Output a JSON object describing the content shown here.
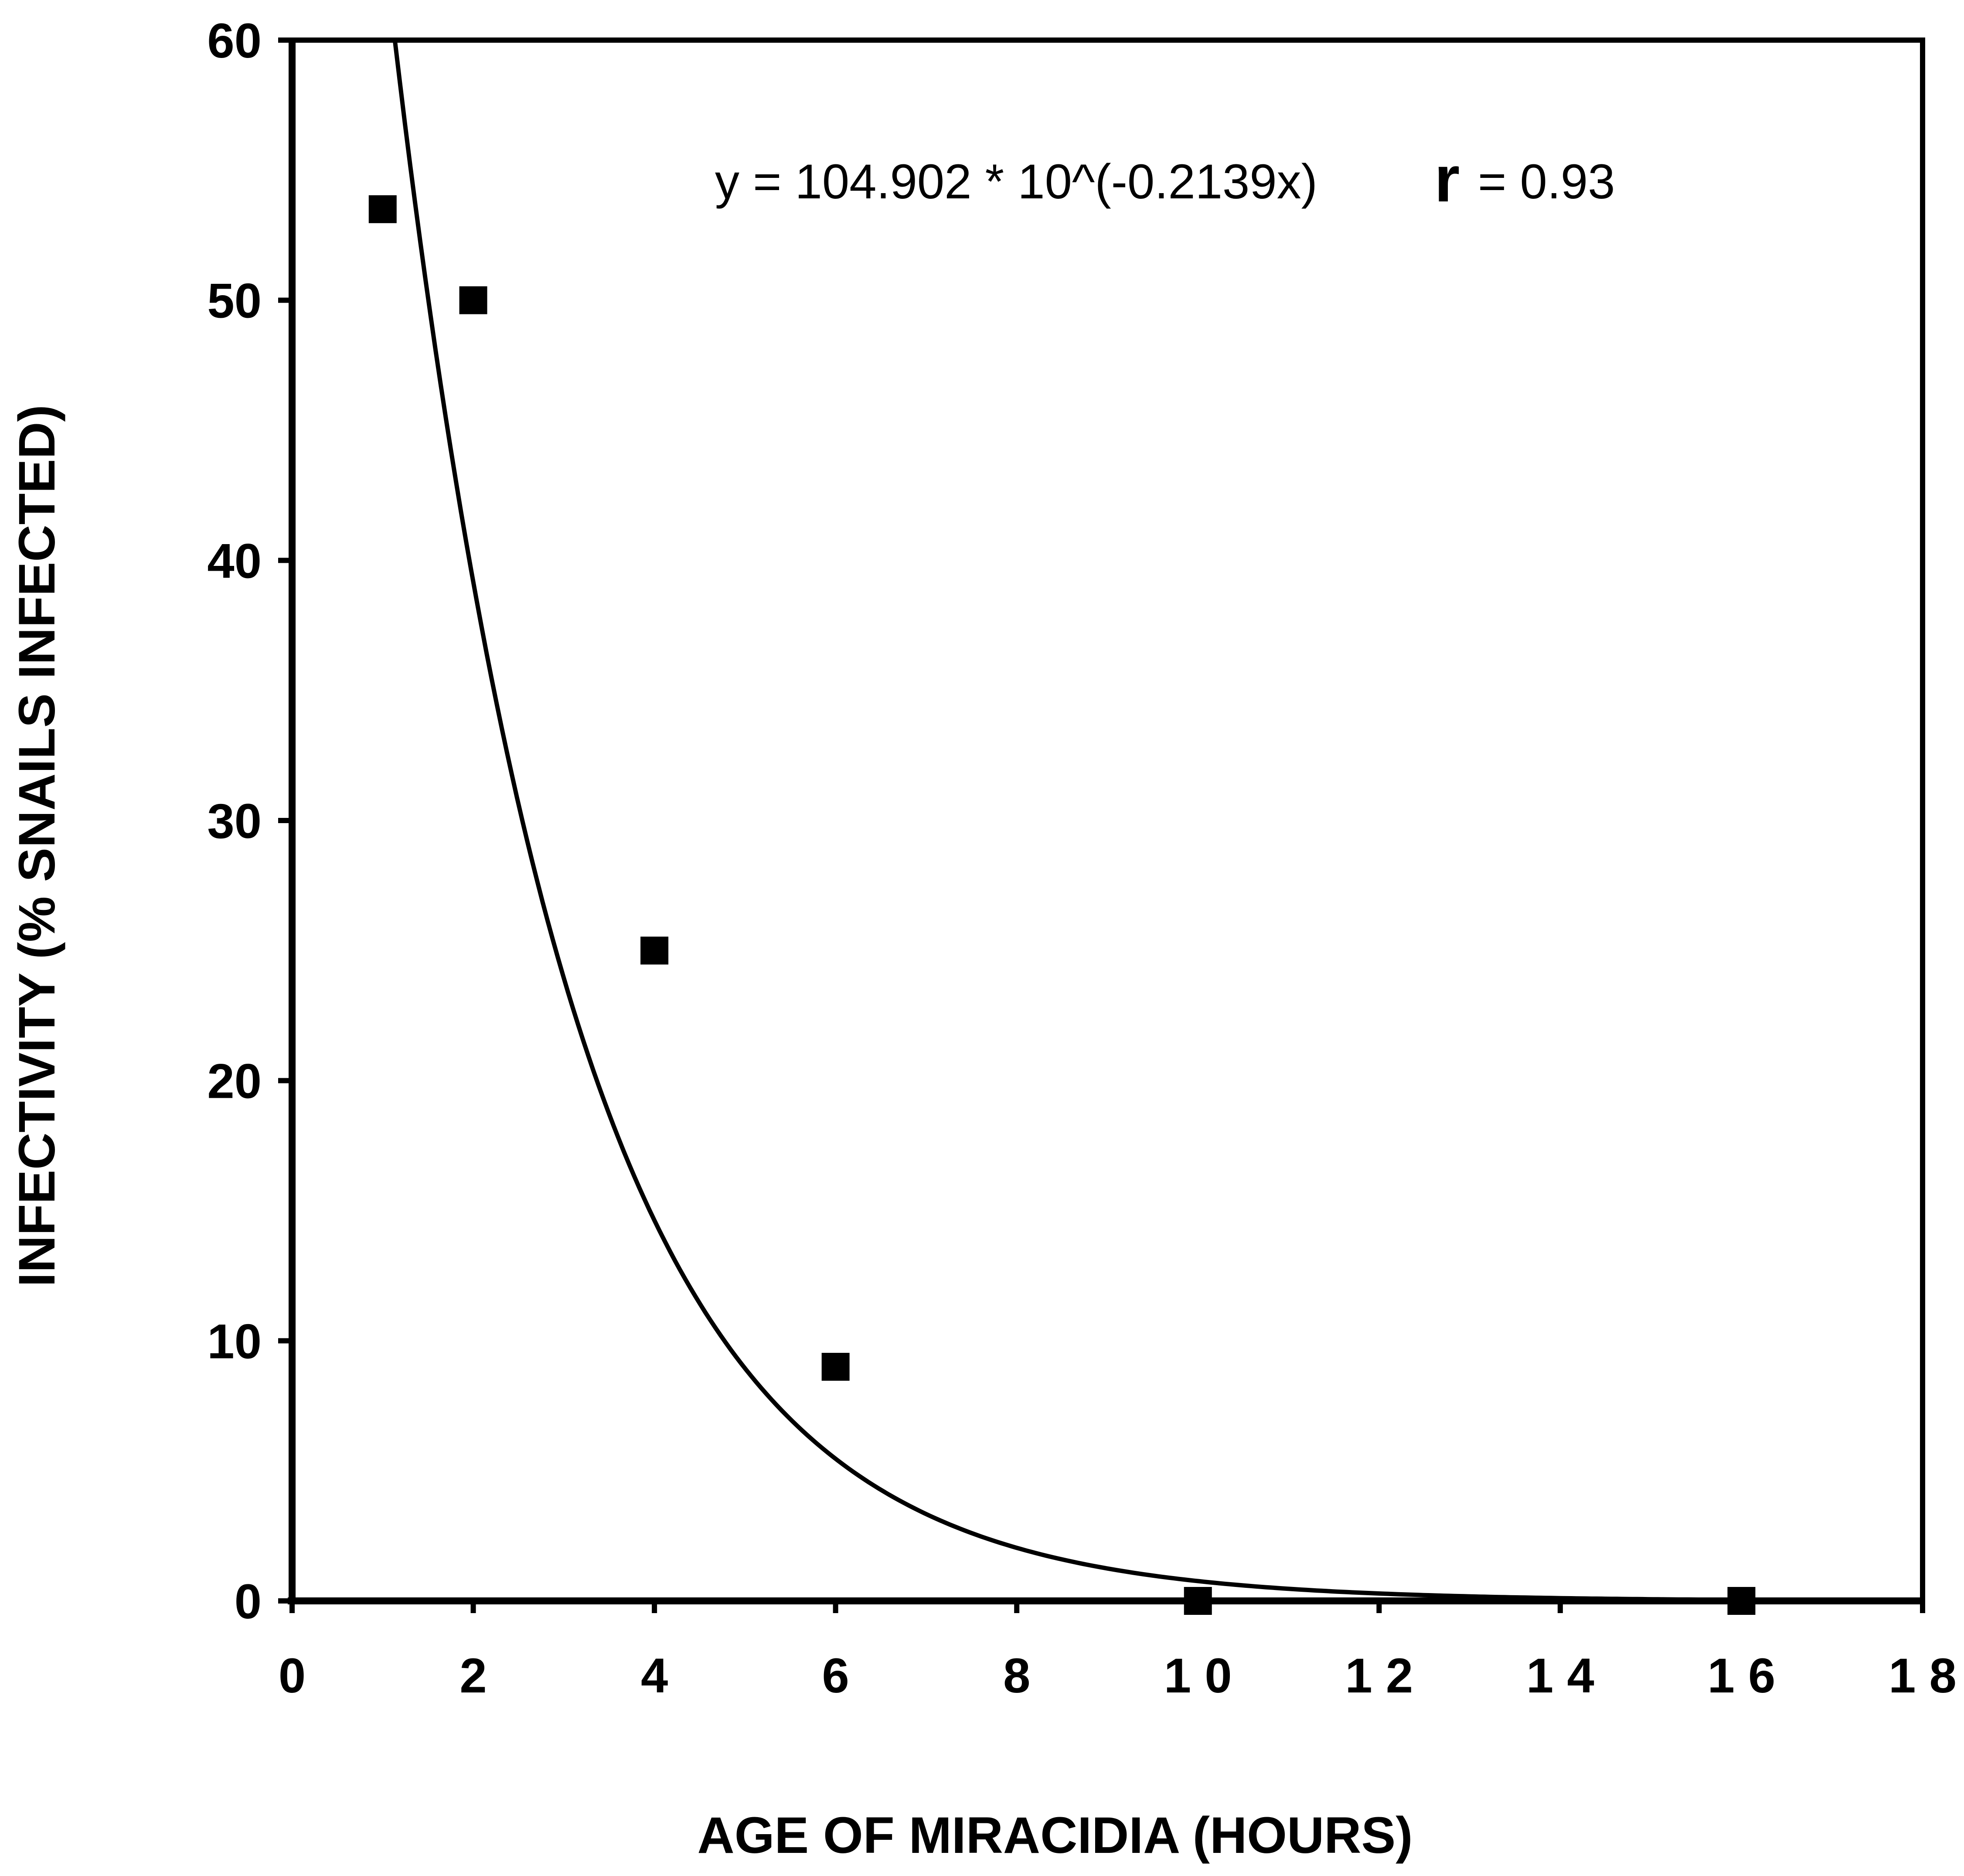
{
  "chart_data": {
    "type": "scatter",
    "title": "",
    "xlabel": "AGE OF MIRACIDIA (HOURS)",
    "ylabel": "INFECTIVITY  (%  SNAILS  INFECTED)",
    "xlim": [
      0,
      18
    ],
    "ylim": [
      0,
      60
    ],
    "x_ticks": [
      0,
      2,
      4,
      6,
      8,
      10,
      12,
      14,
      16,
      18
    ],
    "x_tick_labels": [
      "0",
      "2",
      "4",
      "6",
      "8",
      "1 0",
      "1 2",
      "1 4",
      "1 6",
      "1 8"
    ],
    "y_ticks": [
      0,
      10,
      20,
      30,
      40,
      50,
      60
    ],
    "y_tick_labels": [
      "0",
      "10",
      "20",
      "30",
      "40",
      "50",
      "60"
    ],
    "grid": false,
    "points": [
      {
        "x": 1,
        "y": 53.5
      },
      {
        "x": 2,
        "y": 50
      },
      {
        "x": 4,
        "y": 25
      },
      {
        "x": 6,
        "y": 9
      },
      {
        "x": 10,
        "y": 0
      },
      {
        "x": 16,
        "y": 0
      }
    ],
    "fit": {
      "a": 104.902,
      "b": -0.2139,
      "form": "exponential10"
    },
    "annotation": {
      "equation": "y = 104.902 * 10^(-0.2139x)",
      "r_symbol": "r",
      "r_value": "= 0.93"
    }
  }
}
